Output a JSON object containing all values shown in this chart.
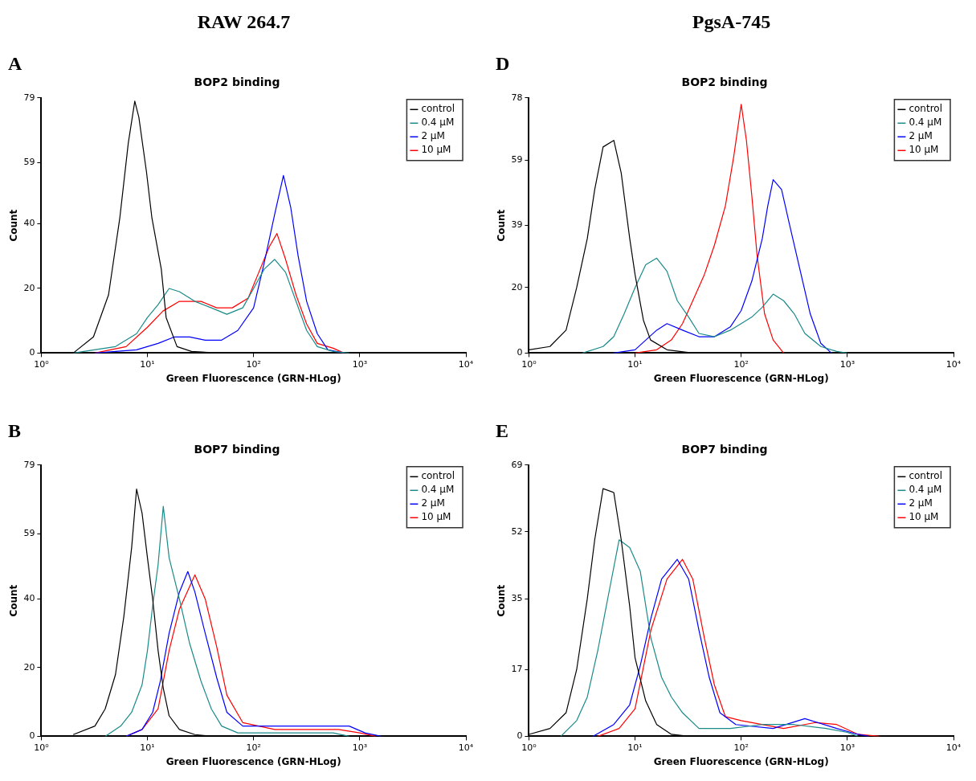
{
  "chart_data": [
    {
      "type": "line",
      "title": "BOP2 binding",
      "xlabel": "Green Fluorescence (GRN-HLog)",
      "ylabel": "Count",
      "annotations": [
        "RAW 264.7",
        "A"
      ],
      "log": "x",
      "xlim": [
        1,
        10000
      ],
      "xticks": [
        {
          "value": 1,
          "label": "10⁰"
        },
        {
          "value": 10,
          "label": "10¹"
        },
        {
          "value": 100,
          "label": "10²"
        },
        {
          "value": 1000,
          "label": "10³"
        },
        {
          "value": 10000,
          "label": "10⁴"
        }
      ],
      "ylim": [
        0,
        79
      ],
      "yticks": [
        0,
        20,
        40,
        59,
        79
      ],
      "grid": false,
      "legend": "top right",
      "marker": "none",
      "line_style": "solid",
      "series": [
        {
          "name": "control",
          "color": "#000000",
          "x": [
            2,
            3.1,
            4.3,
            5.5,
            6.6,
            7.6,
            8.3,
            9.8,
            11,
            13.5,
            15,
            19,
            26,
            50
          ],
          "values": [
            0,
            5,
            18,
            42,
            65,
            78,
            73,
            56,
            42,
            26,
            11,
            2,
            0.5,
            0
          ]
        },
        {
          "name": "0.4 µM",
          "color": "#1a8a8a",
          "x": [
            2,
            5,
            7.9,
            10,
            12.6,
            16,
            20,
            28,
            40,
            56,
            79,
            100,
            126,
            158,
            200,
            251,
            316,
            398,
            562,
            794
          ],
          "values": [
            0,
            2,
            6,
            11,
            15,
            20,
            19,
            16,
            14,
            12,
            14,
            20,
            26,
            29,
            25,
            16,
            7,
            2,
            0.5,
            0
          ]
        },
        {
          "name": "2 µM",
          "color": "#0000ff",
          "x": [
            3.2,
            7.9,
            12.6,
            18,
            25,
            35,
            50,
            71,
            100,
            126,
            158,
            191,
            224,
            263,
            316,
            398,
            501,
            708
          ],
          "values": [
            0,
            1,
            3,
            5,
            5,
            4,
            4,
            7,
            14,
            28,
            43,
            55,
            45,
            30,
            16,
            6,
            1,
            0
          ]
        },
        {
          "name": "10 µM",
          "color": "#ff0000",
          "x": [
            3.2,
            6.3,
            10,
            14,
            20,
            32,
            45,
            63,
            89,
            112,
            141,
            166,
            200,
            251,
            316,
            398,
            562,
            708
          ],
          "values": [
            0,
            2,
            8,
            13,
            16,
            16,
            14,
            14,
            17,
            25,
            33,
            37,
            29,
            18,
            9,
            3,
            1.5,
            0
          ]
        }
      ]
    },
    {
      "type": "line",
      "title": "BOP2 binding",
      "xlabel": "Green Fluorescence (GRN-HLog)",
      "ylabel": "Count",
      "annotations": [
        "PgsA-745",
        "D"
      ],
      "log": "x",
      "xlim": [
        1,
        10000
      ],
      "xticks": [
        {
          "value": 1,
          "label": "10⁰"
        },
        {
          "value": 10,
          "label": "10¹"
        },
        {
          "value": 100,
          "label": "10²"
        },
        {
          "value": 1000,
          "label": "10³"
        },
        {
          "value": 10000,
          "label": "10⁴"
        }
      ],
      "ylim": [
        0,
        78
      ],
      "yticks": [
        0,
        20,
        39,
        59,
        78
      ],
      "grid": false,
      "legend": "top right",
      "marker": "none",
      "line_style": "solid",
      "series": [
        {
          "name": "control",
          "color": "#000000",
          "x": [
            1,
            1.58,
            2.24,
            2.82,
            3.55,
            4.17,
            5,
            6.31,
            7.41,
            8.91,
            10,
            12,
            14,
            20,
            35
          ],
          "values": [
            1,
            2,
            7,
            20,
            35,
            50,
            63,
            65,
            55,
            35,
            24,
            10,
            4,
            1,
            0
          ]
        },
        {
          "name": "0.4 µM",
          "color": "#1a8a8a",
          "x": [
            3.2,
            5,
            6.3,
            7.9,
            10,
            12.6,
            16,
            20,
            25,
            32,
            40,
            56,
            79,
            100,
            126,
            158,
            200,
            251,
            316,
            398,
            562,
            794,
            1000
          ],
          "values": [
            0,
            2,
            5,
            12,
            20,
            27,
            29,
            25,
            16,
            11,
            6,
            5,
            7,
            9,
            11,
            14,
            18,
            16,
            12,
            6,
            2,
            0.5,
            0
          ]
        },
        {
          "name": "2 µM",
          "color": "#0000ff",
          "x": [
            6.3,
            10,
            16,
            20,
            28,
            40,
            56,
            79,
            100,
            126,
            158,
            178,
            200,
            240,
            282,
            355,
            447,
            562,
            708
          ],
          "values": [
            0,
            1,
            7,
            9,
            7,
            5,
            5,
            8,
            13,
            22,
            35,
            45,
            53,
            50,
            40,
            26,
            12,
            3,
            0
          ]
        },
        {
          "name": "10 µM",
          "color": "#ff0000",
          "x": [
            10,
            16,
            22,
            28,
            35,
            45,
            56,
            71,
            85,
            100,
            112,
            126,
            141,
            166,
            200,
            251
          ],
          "values": [
            0,
            1,
            4,
            9,
            16,
            24,
            33,
            45,
            60,
            76,
            65,
            48,
            30,
            12,
            4,
            0
          ]
        }
      ]
    },
    {
      "type": "line",
      "title": "BOP7 binding",
      "xlabel": "Green Fluorescence (GRN-HLog)",
      "ylabel": "Count",
      "annotations": [
        "B"
      ],
      "log": "x",
      "xlim": [
        1,
        10000
      ],
      "xticks": [
        {
          "value": 1,
          "label": "10⁰"
        },
        {
          "value": 10,
          "label": "10¹"
        },
        {
          "value": 100,
          "label": "10²"
        },
        {
          "value": 1000,
          "label": "10³"
        },
        {
          "value": 10000,
          "label": "10⁴"
        }
      ],
      "ylim": [
        0,
        79
      ],
      "yticks": [
        0,
        20,
        40,
        59,
        79
      ],
      "grid": false,
      "legend": "top right",
      "marker": "none",
      "line_style": "solid",
      "series": [
        {
          "name": "control",
          "color": "#000000",
          "x": [
            2,
            3.2,
            4,
            5,
            6,
            7.1,
            7.9,
            8.9,
            10,
            11.2,
            12.6,
            14.1,
            16,
            20,
            28,
            40
          ],
          "values": [
            0.5,
            3,
            8,
            18,
            35,
            55,
            72,
            65,
            52,
            40,
            25,
            14,
            6,
            2,
            0.5,
            0
          ]
        },
        {
          "name": "0.4 µM",
          "color": "#1a8a8a",
          "x": [
            4,
            5.6,
            7.1,
            8.9,
            10,
            11.2,
            12.6,
            14.1,
            16,
            20,
            25,
            32,
            40,
            50,
            71,
            158,
            316,
            562,
            794
          ],
          "values": [
            0,
            3,
            7,
            15,
            25,
            38,
            50,
            67,
            52,
            40,
            27,
            16,
            8,
            3,
            1,
            1,
            1,
            1,
            0
          ]
        },
        {
          "name": "2 µM",
          "color": "#0000ff",
          "x": [
            6.3,
            8.9,
            11.2,
            13.2,
            16,
            20,
            24,
            28,
            35,
            45,
            56,
            79,
            178,
            398,
            794,
            1122,
            1585
          ],
          "values": [
            0,
            2,
            7,
            16,
            30,
            42,
            48,
            42,
            30,
            17,
            7,
            3,
            3,
            3,
            3,
            1,
            0
          ]
        },
        {
          "name": "10 µM",
          "color": "#ff0000",
          "x": [
            6.3,
            8.9,
            12.6,
            16,
            20,
            28,
            35,
            45,
            56,
            79,
            158,
            316,
            631,
            1000,
            1413
          ],
          "values": [
            0,
            2,
            8,
            25,
            37,
            47,
            40,
            26,
            12,
            4,
            2,
            2,
            2,
            1,
            0
          ]
        }
      ]
    },
    {
      "type": "line",
      "title": "BOP7 binding",
      "xlabel": "Green Fluorescence (GRN-HLog)",
      "ylabel": "Count",
      "annotations": [
        "E"
      ],
      "log": "x",
      "xlim": [
        1,
        10000
      ],
      "xticks": [
        {
          "value": 1,
          "label": "10⁰"
        },
        {
          "value": 10,
          "label": "10¹"
        },
        {
          "value": 100,
          "label": "10²"
        },
        {
          "value": 1000,
          "label": "10³"
        },
        {
          "value": 10000,
          "label": "10⁴"
        }
      ],
      "ylim": [
        0,
        69
      ],
      "yticks": [
        0,
        17,
        35,
        52,
        69
      ],
      "grid": false,
      "legend": "top right",
      "marker": "none",
      "line_style": "solid",
      "series": [
        {
          "name": "control",
          "color": "#000000",
          "x": [
            1,
            1.58,
            2.24,
            2.82,
            3.55,
            4.17,
            5,
            6.31,
            7.41,
            8.91,
            10,
            12.6,
            16,
            22,
            32
          ],
          "values": [
            0.5,
            2,
            6,
            17,
            35,
            50,
            63,
            62,
            50,
            33,
            20,
            9,
            3,
            0.5,
            0
          ]
        },
        {
          "name": "0.4 µM",
          "color": "#1a8a8a",
          "x": [
            2,
            2.82,
            3.55,
            4.47,
            5.62,
            7.08,
            8.91,
            11.2,
            14.1,
            17.8,
            22,
            28,
            40,
            79,
            158,
            316,
            631,
            1000,
            1259
          ],
          "values": [
            0,
            4,
            10,
            22,
            36,
            50,
            48,
            42,
            25,
            15,
            10,
            6,
            2,
            2,
            3,
            3,
            2,
            1,
            0
          ]
        },
        {
          "name": "2 µM",
          "color": "#0000ff",
          "x": [
            4,
            6.3,
            8.9,
            11.2,
            14.1,
            17.8,
            25,
            32,
            40,
            50,
            63,
            89,
            200,
            398,
            794,
            1259,
            1585
          ],
          "values": [
            0,
            3,
            8,
            18,
            30,
            40,
            45,
            40,
            27,
            15,
            6,
            3,
            2,
            4.5,
            2,
            0.5,
            0
          ]
        },
        {
          "name": "10 µM",
          "color": "#ff0000",
          "x": [
            4.47,
            7.08,
            10,
            14.1,
            20,
            28,
            35,
            45,
            56,
            71,
            100,
            251,
            501,
            794,
            1259,
            1995
          ],
          "values": [
            0,
            2,
            7,
            27,
            40,
            45,
            40,
            25,
            13,
            5,
            4,
            2,
            3.5,
            3,
            0.5,
            0
          ]
        }
      ]
    }
  ]
}
